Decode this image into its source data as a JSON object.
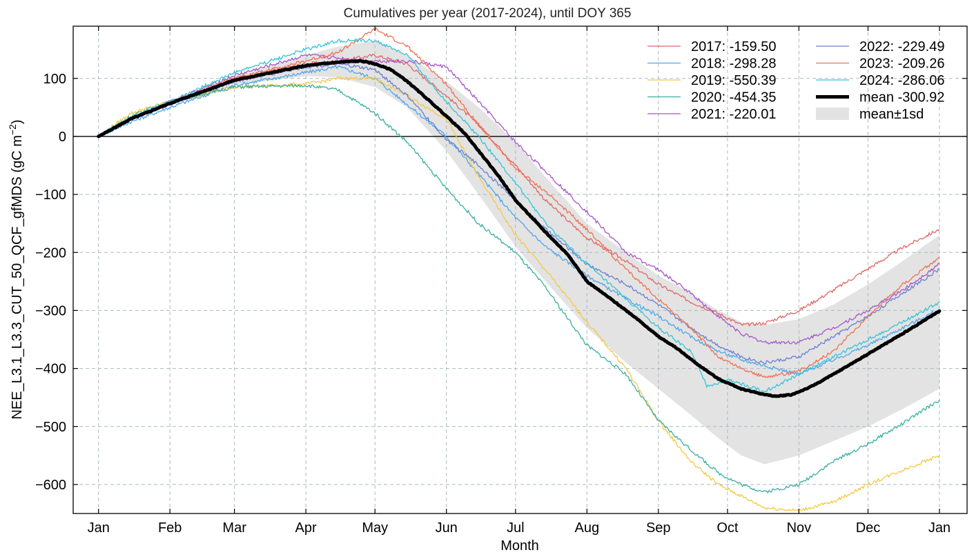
{
  "chart_data": {
    "type": "line",
    "title": "Cumulatives per year (2017-2024), until DOY 365",
    "xlabel": "Month",
    "ylabel": "NEE_L3.1_L3.3_CUT_50_QCF_gfMDS  (gC m",
    "ylabel_unit_sup": "−2",
    "ylabel_close": ")",
    "xlim": [
      -10,
      378
    ],
    "ylim": [
      -650,
      190
    ],
    "grid": true,
    "legend_position": "top-right",
    "x_ticks": [
      {
        "label": "Jan",
        "doy": 1
      },
      {
        "label": "Feb",
        "doy": 32
      },
      {
        "label": "Mar",
        "doy": 60
      },
      {
        "label": "Apr",
        "doy": 91
      },
      {
        "label": "May",
        "doy": 121
      },
      {
        "label": "Jun",
        "doy": 152
      },
      {
        "label": "Jul",
        "doy": 182
      },
      {
        "label": "Aug",
        "doy": 213
      },
      {
        "label": "Sep",
        "doy": 244
      },
      {
        "label": "Oct",
        "doy": 274
      },
      {
        "label": "Nov",
        "doy": 305
      },
      {
        "label": "Dec",
        "doy": 335
      },
      {
        "label": "Jan",
        "doy": 366
      }
    ],
    "y_ticks": [
      {
        "label": "100",
        "value": 100
      },
      {
        "label": "0",
        "value": 0
      },
      {
        "label": "−100",
        "value": -100
      },
      {
        "label": "−200",
        "value": -200
      },
      {
        "label": "−300",
        "value": -300
      },
      {
        "label": "−400",
        "value": -400
      },
      {
        "label": "−500",
        "value": -500
      },
      {
        "label": "−600",
        "value": -600
      }
    ],
    "series": [
      {
        "name": "2017: -159.50",
        "color": "#e06666",
        "points": [
          [
            1,
            0
          ],
          [
            15,
            30
          ],
          [
            32,
            58
          ],
          [
            60,
            100
          ],
          [
            91,
            125
          ],
          [
            105,
            130
          ],
          [
            121,
            140
          ],
          [
            135,
            125
          ],
          [
            152,
            70
          ],
          [
            166,
            20
          ],
          [
            182,
            -50
          ],
          [
            195,
            -110
          ],
          [
            213,
            -175
          ],
          [
            230,
            -215
          ],
          [
            244,
            -255
          ],
          [
            258,
            -285
          ],
          [
            270,
            -305
          ],
          [
            280,
            -325
          ],
          [
            290,
            -322
          ],
          [
            305,
            -300
          ],
          [
            320,
            -265
          ],
          [
            335,
            -228
          ],
          [
            350,
            -192
          ],
          [
            366,
            -160
          ]
        ]
      },
      {
        "name": "2018: -298.28",
        "color": "#4da6ea",
        "points": [
          [
            1,
            0
          ],
          [
            15,
            25
          ],
          [
            32,
            50
          ],
          [
            60,
            88
          ],
          [
            91,
            110
          ],
          [
            105,
            120
          ],
          [
            121,
            100
          ],
          [
            135,
            55
          ],
          [
            152,
            0
          ],
          [
            166,
            -65
          ],
          [
            182,
            -140
          ],
          [
            195,
            -190
          ],
          [
            213,
            -240
          ],
          [
            230,
            -280
          ],
          [
            244,
            -310
          ],
          [
            258,
            -345
          ],
          [
            270,
            -370
          ],
          [
            280,
            -385
          ],
          [
            290,
            -395
          ],
          [
            305,
            -410
          ],
          [
            320,
            -385
          ],
          [
            335,
            -360
          ],
          [
            350,
            -330
          ],
          [
            366,
            -298
          ]
        ]
      },
      {
        "name": "2019: -550.39",
        "color": "#f5c842",
        "points": [
          [
            1,
            0
          ],
          [
            15,
            40
          ],
          [
            32,
            60
          ],
          [
            60,
            85
          ],
          [
            91,
            90
          ],
          [
            105,
            100
          ],
          [
            121,
            100
          ],
          [
            135,
            70
          ],
          [
            152,
            30
          ],
          [
            166,
            -70
          ],
          [
            182,
            -170
          ],
          [
            195,
            -230
          ],
          [
            213,
            -320
          ],
          [
            230,
            -400
          ],
          [
            244,
            -490
          ],
          [
            258,
            -560
          ],
          [
            270,
            -600
          ],
          [
            280,
            -620
          ],
          [
            290,
            -640
          ],
          [
            305,
            -645
          ],
          [
            320,
            -630
          ],
          [
            335,
            -600
          ],
          [
            350,
            -575
          ],
          [
            366,
            -550
          ]
        ]
      },
      {
        "name": "2020: -454.35",
        "color": "#3aafa1",
        "points": [
          [
            1,
            0
          ],
          [
            15,
            35
          ],
          [
            32,
            60
          ],
          [
            60,
            85
          ],
          [
            91,
            88
          ],
          [
            105,
            80
          ],
          [
            121,
            40
          ],
          [
            135,
            -10
          ],
          [
            152,
            -90
          ],
          [
            166,
            -150
          ],
          [
            182,
            -200
          ],
          [
            195,
            -260
          ],
          [
            213,
            -360
          ],
          [
            230,
            -410
          ],
          [
            244,
            -490
          ],
          [
            258,
            -540
          ],
          [
            270,
            -580
          ],
          [
            280,
            -600
          ],
          [
            290,
            -613
          ],
          [
            305,
            -600
          ],
          [
            320,
            -560
          ],
          [
            335,
            -530
          ],
          [
            350,
            -495
          ],
          [
            366,
            -454
          ]
        ]
      },
      {
        "name": "2021: -220.01",
        "color": "#a755c7",
        "points": [
          [
            1,
            0
          ],
          [
            15,
            30
          ],
          [
            32,
            60
          ],
          [
            60,
            105
          ],
          [
            91,
            140
          ],
          [
            105,
            135
          ],
          [
            121,
            130
          ],
          [
            135,
            130
          ],
          [
            152,
            120
          ],
          [
            166,
            60
          ],
          [
            182,
            -10
          ],
          [
            195,
            -60
          ],
          [
            213,
            -130
          ],
          [
            230,
            -200
          ],
          [
            244,
            -230
          ],
          [
            258,
            -270
          ],
          [
            270,
            -310
          ],
          [
            280,
            -340
          ],
          [
            290,
            -355
          ],
          [
            305,
            -355
          ],
          [
            320,
            -330
          ],
          [
            335,
            -300
          ],
          [
            350,
            -265
          ],
          [
            366,
            -220
          ]
        ]
      },
      {
        "name": "2022: -229.49",
        "color": "#6a7fd0",
        "points": [
          [
            1,
            0
          ],
          [
            15,
            30
          ],
          [
            32,
            55
          ],
          [
            60,
            95
          ],
          [
            91,
            120
          ],
          [
            105,
            125
          ],
          [
            121,
            115
          ],
          [
            135,
            70
          ],
          [
            152,
            -5
          ],
          [
            166,
            -50
          ],
          [
            182,
            -110
          ],
          [
            195,
            -160
          ],
          [
            213,
            -220
          ],
          [
            230,
            -255
          ],
          [
            244,
            -290
          ],
          [
            258,
            -330
          ],
          [
            270,
            -360
          ],
          [
            280,
            -380
          ],
          [
            290,
            -390
          ],
          [
            305,
            -380
          ],
          [
            320,
            -345
          ],
          [
            335,
            -310
          ],
          [
            350,
            -270
          ],
          [
            366,
            -229
          ]
        ]
      },
      {
        "name": "2023: -209.26",
        "color": "#f07050",
        "points": [
          [
            1,
            0
          ],
          [
            15,
            30
          ],
          [
            32,
            58
          ],
          [
            60,
            100
          ],
          [
            91,
            130
          ],
          [
            105,
            145
          ],
          [
            121,
            185
          ],
          [
            135,
            155
          ],
          [
            152,
            90
          ],
          [
            166,
            20
          ],
          [
            182,
            -55
          ],
          [
            195,
            -95
          ],
          [
            213,
            -160
          ],
          [
            230,
            -230
          ],
          [
            244,
            -280
          ],
          [
            258,
            -330
          ],
          [
            270,
            -380
          ],
          [
            280,
            -400
          ],
          [
            290,
            -415
          ],
          [
            305,
            -405
          ],
          [
            320,
            -370
          ],
          [
            335,
            -310
          ],
          [
            350,
            -255
          ],
          [
            366,
            -209
          ]
        ]
      },
      {
        "name": "2024: -286.06",
        "color": "#33c4d9",
        "points": [
          [
            1,
            0
          ],
          [
            15,
            35
          ],
          [
            32,
            60
          ],
          [
            60,
            110
          ],
          [
            91,
            150
          ],
          [
            105,
            165
          ],
          [
            121,
            165
          ],
          [
            135,
            140
          ],
          [
            152,
            60
          ],
          [
            166,
            0
          ],
          [
            182,
            -80
          ],
          [
            195,
            -150
          ],
          [
            213,
            -220
          ],
          [
            230,
            -280
          ],
          [
            244,
            -330
          ],
          [
            258,
            -370
          ],
          [
            265,
            -430
          ],
          [
            275,
            -420
          ],
          [
            290,
            -440
          ],
          [
            305,
            -410
          ],
          [
            320,
            -380
          ],
          [
            335,
            -350
          ],
          [
            350,
            -320
          ],
          [
            366,
            -286
          ]
        ]
      }
    ],
    "mean": {
      "name": "mean -300.92",
      "color": "#000000",
      "points": [
        [
          1,
          0
        ],
        [
          15,
          30
        ],
        [
          32,
          57
        ],
        [
          60,
          97
        ],
        [
          91,
          122
        ],
        [
          105,
          128
        ],
        [
          115,
          130
        ],
        [
          121,
          125
        ],
        [
          128,
          115
        ],
        [
          135,
          95
        ],
        [
          145,
          60
        ],
        [
          152,
          35
        ],
        [
          160,
          5
        ],
        [
          166,
          -25
        ],
        [
          175,
          -70
        ],
        [
          182,
          -110
        ],
        [
          195,
          -165
        ],
        [
          205,
          -205
        ],
        [
          213,
          -250
        ],
        [
          225,
          -285
        ],
        [
          235,
          -315
        ],
        [
          244,
          -345
        ],
        [
          252,
          -365
        ],
        [
          260,
          -390
        ],
        [
          270,
          -418
        ],
        [
          280,
          -435
        ],
        [
          290,
          -445
        ],
        [
          295,
          -448
        ],
        [
          302,
          -445
        ],
        [
          310,
          -432
        ],
        [
          320,
          -410
        ],
        [
          335,
          -375
        ],
        [
          350,
          -340
        ],
        [
          366,
          -301
        ]
      ]
    },
    "band": {
      "name": "mean±1sd",
      "color": "#e3e3e3",
      "upper": [
        [
          1,
          0
        ],
        [
          15,
          32
        ],
        [
          32,
          60
        ],
        [
          60,
          105
        ],
        [
          91,
          140
        ],
        [
          105,
          155
        ],
        [
          121,
          165
        ],
        [
          135,
          140
        ],
        [
          152,
          95
        ],
        [
          166,
          50
        ],
        [
          182,
          -10
        ],
        [
          195,
          -70
        ],
        [
          213,
          -150
        ],
        [
          230,
          -200
        ],
        [
          244,
          -240
        ],
        [
          258,
          -270
        ],
        [
          270,
          -300
        ],
        [
          280,
          -320
        ],
        [
          290,
          -325
        ],
        [
          305,
          -315
        ],
        [
          320,
          -290
        ],
        [
          335,
          -255
        ],
        [
          350,
          -215
        ],
        [
          366,
          -170
        ]
      ],
      "lower": [
        [
          1,
          0
        ],
        [
          15,
          28
        ],
        [
          32,
          54
        ],
        [
          60,
          88
        ],
        [
          91,
          104
        ],
        [
          105,
          102
        ],
        [
          121,
          85
        ],
        [
          135,
          50
        ],
        [
          152,
          -25
        ],
        [
          166,
          -100
        ],
        [
          182,
          -190
        ],
        [
          195,
          -250
        ],
        [
          213,
          -330
        ],
        [
          230,
          -390
        ],
        [
          244,
          -435
        ],
        [
          258,
          -480
        ],
        [
          270,
          -520
        ],
        [
          280,
          -550
        ],
        [
          290,
          -565
        ],
        [
          305,
          -550
        ],
        [
          320,
          -525
        ],
        [
          335,
          -500
        ],
        [
          350,
          -470
        ],
        [
          366,
          -435
        ]
      ]
    }
  }
}
